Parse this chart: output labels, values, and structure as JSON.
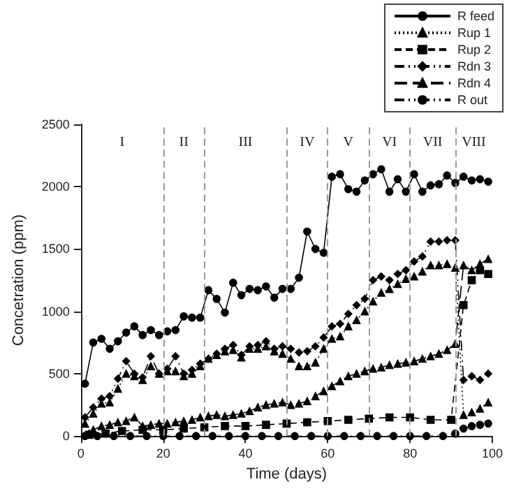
{
  "chart_data": {
    "type": "line",
    "xlabel": "Time (days)",
    "ylabel": "Concetration (ppm)",
    "xlim": [
      0,
      100
    ],
    "xticks": [
      0,
      20,
      40,
      60,
      80,
      100
    ],
    "ylim": [
      0,
      2500
    ],
    "yticks": [
      0,
      500,
      1000,
      1500,
      2000,
      2500
    ],
    "grid": false,
    "legend": "top right",
    "ref_lines": [
      {
        "axis": "x",
        "value": 20,
        "color": "#999999",
        "line_style": "dashed"
      },
      {
        "axis": "x",
        "value": 30,
        "color": "#999999",
        "line_style": "dashed"
      },
      {
        "axis": "x",
        "value": 50,
        "color": "#999999",
        "line_style": "dashed"
      },
      {
        "axis": "x",
        "value": 60,
        "color": "#999999",
        "line_style": "dashed"
      },
      {
        "axis": "x",
        "value": 70,
        "color": "#999999",
        "line_style": "dashed"
      },
      {
        "axis": "x",
        "value": 80,
        "color": "#999999",
        "line_style": "dashed"
      },
      {
        "axis": "x",
        "value": 91,
        "color": "#999999",
        "line_style": "dashed"
      }
    ],
    "annotations": [
      "I",
      "II",
      "III",
      "IV",
      "V",
      "VI",
      "VII",
      "VIII"
    ],
    "series": [
      {
        "name": "R feed",
        "color": "#000000",
        "marker": "circle",
        "line_style": "solid",
        "x": [
          1,
          3,
          5,
          7,
          9,
          11,
          13,
          15,
          17,
          19,
          21,
          23,
          25,
          27,
          29,
          31,
          33,
          35,
          37,
          39,
          41,
          43,
          45,
          47,
          49,
          51,
          53,
          55,
          57,
          59,
          61,
          63,
          65,
          67,
          69,
          71,
          73,
          75,
          77,
          79,
          81,
          83,
          85,
          87,
          89,
          91,
          93,
          95,
          97,
          99
        ],
        "values": [
          420,
          750,
          780,
          700,
          760,
          830,
          880,
          810,
          850,
          810,
          840,
          850,
          960,
          950,
          950,
          1170,
          1100,
          990,
          1230,
          1130,
          1180,
          1170,
          1200,
          1110,
          1180,
          1180,
          1270,
          1640,
          1500,
          1470,
          2080,
          2100,
          1980,
          1960,
          2050,
          2100,
          2140,
          1960,
          2060,
          1960,
          2100,
          1960,
          2010,
          2020,
          2090,
          2030,
          2080,
          2050,
          2060,
          2040
        ]
      },
      {
        "name": "Rup 1",
        "color": "#000000",
        "marker": "triangle",
        "line_style": "dotted",
        "x": [
          1,
          3,
          5,
          7,
          9,
          11,
          13,
          15,
          17,
          19,
          21,
          23,
          25,
          27,
          29,
          31,
          33,
          35,
          37,
          39,
          41,
          43,
          45,
          47,
          49,
          51,
          53,
          55,
          57,
          59,
          61,
          63,
          65,
          67,
          69,
          71,
          73,
          75,
          77,
          79,
          81,
          83,
          85,
          87,
          89,
          91,
          93,
          95,
          97,
          99
        ],
        "values": [
          100,
          180,
          260,
          270,
          380,
          500,
          480,
          450,
          560,
          500,
          520,
          520,
          480,
          500,
          560,
          620,
          650,
          680,
          690,
          630,
          700,
          700,
          720,
          680,
          660,
          620,
          560,
          560,
          590,
          700,
          780,
          800,
          880,
          930,
          1000,
          1080,
          1150,
          1180,
          1220,
          1260,
          1280,
          1320,
          1370,
          1370,
          1380,
          1350,
          170,
          190,
          220,
          270
        ]
      },
      {
        "name": "Rup 2",
        "color": "#000000",
        "marker": "square",
        "line_style": "dashed",
        "x": [
          2,
          6,
          10,
          15,
          20,
          25,
          30,
          35,
          40,
          45,
          50,
          55,
          60,
          65,
          70,
          75,
          80,
          85,
          90,
          93,
          95,
          97,
          99
        ],
        "values": [
          10,
          20,
          40,
          50,
          50,
          60,
          70,
          80,
          80,
          90,
          100,
          110,
          120,
          130,
          140,
          150,
          150,
          130,
          130,
          1050,
          1250,
          1330,
          1300
        ]
      },
      {
        "name": "Rdn 3",
        "color": "#000000",
        "marker": "diamond",
        "line_style": "dashdot",
        "x": [
          1,
          3,
          5,
          7,
          9,
          11,
          13,
          15,
          17,
          19,
          21,
          23,
          25,
          27,
          29,
          31,
          33,
          35,
          37,
          39,
          41,
          43,
          45,
          47,
          49,
          51,
          53,
          55,
          57,
          59,
          61,
          63,
          65,
          67,
          69,
          71,
          73,
          75,
          77,
          79,
          81,
          83,
          85,
          87,
          89,
          91,
          93,
          95,
          97,
          99
        ],
        "values": [
          150,
          230,
          300,
          320,
          460,
          600,
          500,
          470,
          640,
          500,
          540,
          640,
          500,
          530,
          580,
          620,
          660,
          700,
          730,
          650,
          720,
          730,
          760,
          700,
          720,
          700,
          670,
          680,
          720,
          790,
          880,
          900,
          980,
          1050,
          1100,
          1250,
          1280,
          1250,
          1300,
          1330,
          1400,
          1440,
          1560,
          1560,
          1570,
          1570,
          450,
          480,
          450,
          500
        ]
      },
      {
        "name": "Rdn 4",
        "color": "#000000",
        "marker": "triangle",
        "line_style": "longdash",
        "x": [
          2,
          3,
          5,
          7,
          9,
          11,
          13,
          15,
          17,
          19,
          21,
          23,
          25,
          27,
          29,
          31,
          33,
          35,
          37,
          39,
          41,
          43,
          45,
          47,
          49,
          51,
          53,
          55,
          57,
          59,
          61,
          63,
          65,
          67,
          69,
          71,
          73,
          75,
          77,
          79,
          81,
          83,
          85,
          87,
          89,
          91,
          93,
          95,
          97,
          99
        ],
        "values": [
          20,
          50,
          80,
          90,
          110,
          120,
          150,
          80,
          90,
          100,
          100,
          110,
          120,
          130,
          150,
          160,
          170,
          160,
          170,
          180,
          200,
          230,
          250,
          260,
          270,
          250,
          260,
          280,
          320,
          360,
          400,
          440,
          480,
          500,
          520,
          540,
          550,
          570,
          580,
          590,
          600,
          620,
          640,
          660,
          690,
          740,
          1370,
          1330,
          1380,
          1420
        ]
      },
      {
        "name": "R out",
        "color": "#000000",
        "marker": "circle",
        "line_style": "dashdot",
        "x": [
          1,
          4,
          8,
          12,
          16,
          20,
          24,
          28,
          32,
          36,
          40,
          44,
          48,
          52,
          56,
          60,
          64,
          68,
          72,
          76,
          80,
          84,
          88,
          91,
          93,
          95,
          97,
          99
        ],
        "values": [
          0,
          0,
          0,
          0,
          0,
          0,
          0,
          0,
          0,
          0,
          0,
          0,
          0,
          0,
          0,
          0,
          0,
          0,
          0,
          0,
          0,
          0,
          0,
          20,
          60,
          80,
          90,
          100
        ]
      }
    ]
  }
}
